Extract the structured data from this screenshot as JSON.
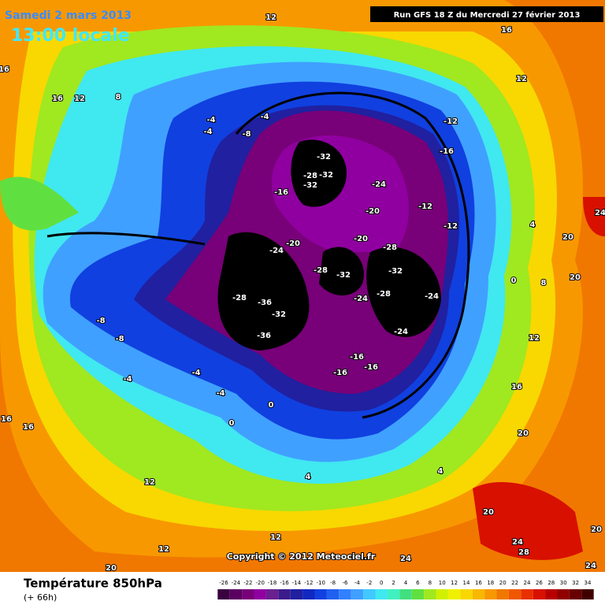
{
  "header": {
    "date": "Samedi 2 mars 2013",
    "time": "13:00 locale",
    "run": "Run GFS 18 Z du Mercredi 27 février 2013"
  },
  "copyright": "Copyright © 2012 Meteociel.fr",
  "footer": {
    "title": "Température 850hPa",
    "lead": "(+ 66h)"
  },
  "colorbar": {
    "ticks": [
      -26,
      -24,
      -22,
      -20,
      -18,
      -16,
      -14,
      -12,
      -10,
      -8,
      -6,
      -4,
      -2,
      0,
      2,
      4,
      6,
      8,
      10,
      12,
      14,
      16,
      18,
      20,
      22,
      24,
      26,
      28,
      30,
      32,
      34
    ],
    "colors": [
      "#3a0040",
      "#5a0060",
      "#780078",
      "#9000a0",
      "#6a2090",
      "#3c1c8c",
      "#2020a0",
      "#1028c0",
      "#1040e0",
      "#2060f0",
      "#3080ff",
      "#40a0ff",
      "#40c8ff",
      "#40e8f0",
      "#40f0c0",
      "#40e080",
      "#60e040",
      "#a0e820",
      "#d0f000",
      "#f0f000",
      "#f8d800",
      "#f8b800",
      "#f89800",
      "#f07800",
      "#f05800",
      "#e83000",
      "#d81000",
      "#b80000",
      "#900000",
      "#680000",
      "#400000"
    ]
  },
  "map_labels": [
    12,
    16,
    16,
    16,
    12,
    8,
    -4,
    -4,
    -8,
    -4,
    -12,
    -16,
    -32,
    -32,
    -28,
    -32,
    -24,
    -16,
    -20,
    -12,
    -12,
    -20,
    -20,
    -24,
    -28,
    -28,
    -32,
    -32,
    -28,
    -36,
    -32,
    -24,
    -28,
    -24,
    -36,
    -24,
    -16,
    -16,
    -16,
    -8,
    -8,
    -4,
    -4,
    -4,
    0,
    0,
    4,
    4,
    12,
    16,
    16,
    20,
    20,
    24,
    28,
    24,
    20,
    12,
    12,
    20,
    24,
    0,
    4,
    8,
    12,
    12,
    16,
    20,
    20,
    24
  ]
}
